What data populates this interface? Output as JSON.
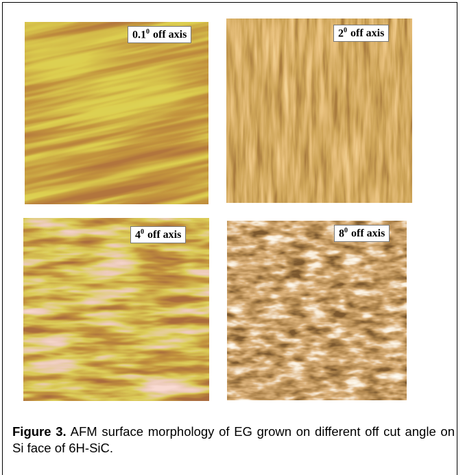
{
  "panels": [
    {
      "label": {
        "base": "0.1",
        "sup": "0",
        "rest": "off axis"
      }
    },
    {
      "label": {
        "base": "2",
        "sup": "0",
        "rest": "off axis"
      }
    },
    {
      "label": {
        "base": "4",
        "sup": "0",
        "rest": "off axis"
      }
    },
    {
      "label": {
        "base": "8",
        "sup": "0",
        "rest": "off axis"
      }
    }
  ],
  "caption": {
    "label": "Figure 3.",
    "text": "AFM surface morphology of EG grown on different off cut angle on Si face of 6H-SiC."
  }
}
